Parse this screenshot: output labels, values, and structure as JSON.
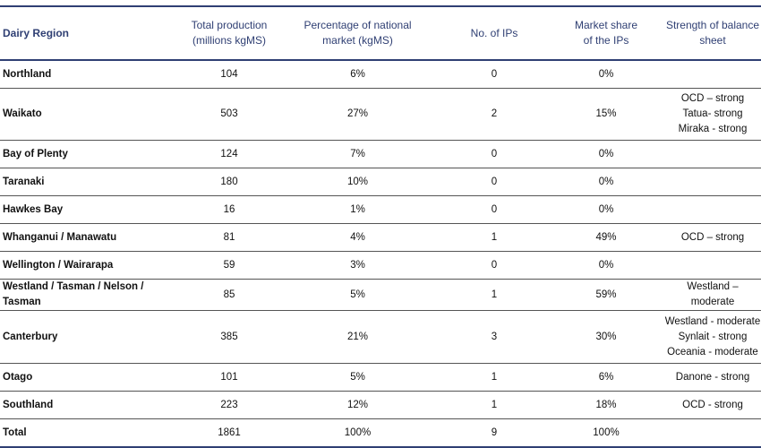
{
  "headers": {
    "region": "Dairy Region",
    "production": [
      "Total production",
      "(millions kgMS)"
    ],
    "percentage": [
      "Percentage of national",
      "market (kgMS)"
    ],
    "ips": "No. of IPs",
    "share": [
      "Market share",
      "of the IPs"
    ],
    "strength": "Strength of balance sheet"
  },
  "rows": [
    {
      "region": "Northland",
      "production": "104",
      "percentage": "6%",
      "ips": "0",
      "share": "0%",
      "strength": []
    },
    {
      "region": "Waikato",
      "production": "503",
      "percentage": "27%",
      "ips": "2",
      "share": "15%",
      "strength": [
        "OCD – strong",
        "Tatua- strong",
        "Miraka - strong"
      ]
    },
    {
      "region": "Bay of Plenty",
      "production": "124",
      "percentage": "7%",
      "ips": "0",
      "share": "0%",
      "strength": []
    },
    {
      "region": "Taranaki",
      "production": "180",
      "percentage": "10%",
      "ips": "0",
      "share": "0%",
      "strength": []
    },
    {
      "region": "Hawkes Bay",
      "production": "16",
      "percentage": "1%",
      "ips": "0",
      "share": "0%",
      "strength": []
    },
    {
      "region": "Whanganui / Manawatu",
      "production": "81",
      "percentage": "4%",
      "ips": "1",
      "share": "49%",
      "strength": [
        "OCD – strong"
      ]
    },
    {
      "region": "Wellington / Wairarapa",
      "production": "59",
      "percentage": "3%",
      "ips": "0",
      "share": "0%",
      "strength": []
    },
    {
      "region": "Westland / Tasman / Nelson / Tasman",
      "production": "85",
      "percentage": "5%",
      "ips": "1",
      "share": "59%",
      "strength": [
        "Westland – moderate"
      ]
    },
    {
      "region": "Canterbury",
      "production": "385",
      "percentage": "21%",
      "ips": "3",
      "share": "30%",
      "strength": [
        "Westland - moderate",
        "Synlait - strong",
        "Oceania - moderate"
      ]
    },
    {
      "region": "Otago",
      "production": "101",
      "percentage": "5%",
      "ips": "1",
      "share": "6%",
      "strength": [
        "Danone - strong"
      ]
    },
    {
      "region": "Southland",
      "production": "223",
      "percentage": "12%",
      "ips": "1",
      "share": "18%",
      "strength": [
        "OCD - strong"
      ]
    },
    {
      "region": "Total",
      "production": "1861",
      "percentage": "100%",
      "ips": "9",
      "share": "100%",
      "strength": []
    }
  ]
}
